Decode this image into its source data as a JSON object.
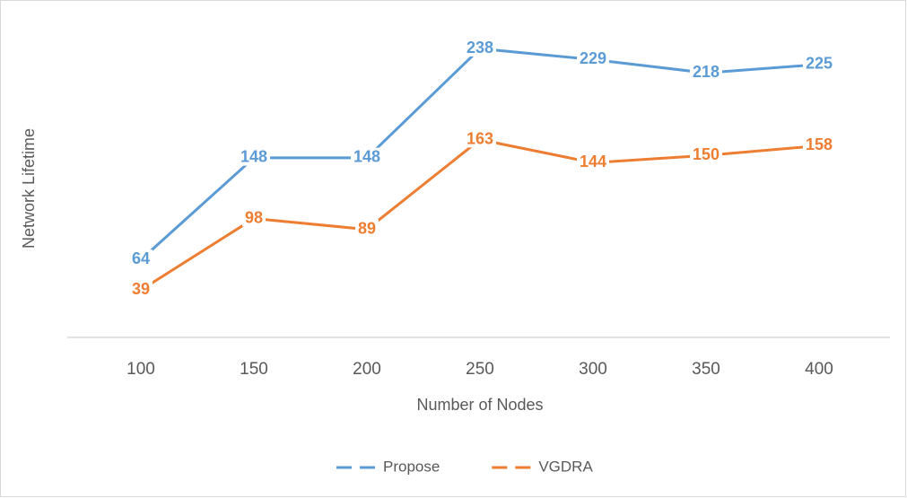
{
  "chart_data": {
    "type": "line",
    "x_label": "Number of Nodes",
    "y_label": "Network Lifetime",
    "categories": [
      "100",
      "150",
      "200",
      "250",
      "300",
      "350",
      "400"
    ],
    "series": [
      {
        "name": "Propose",
        "color": "#5b9bd5",
        "values": [
          64,
          148,
          148,
          238,
          229,
          218,
          225
        ]
      },
      {
        "name": "VGDRA",
        "color": "#ed7d31",
        "values": [
          39,
          98,
          89,
          163,
          144,
          150,
          158
        ]
      }
    ],
    "ylim": [
      0,
      250
    ],
    "legend": "bottom"
  }
}
